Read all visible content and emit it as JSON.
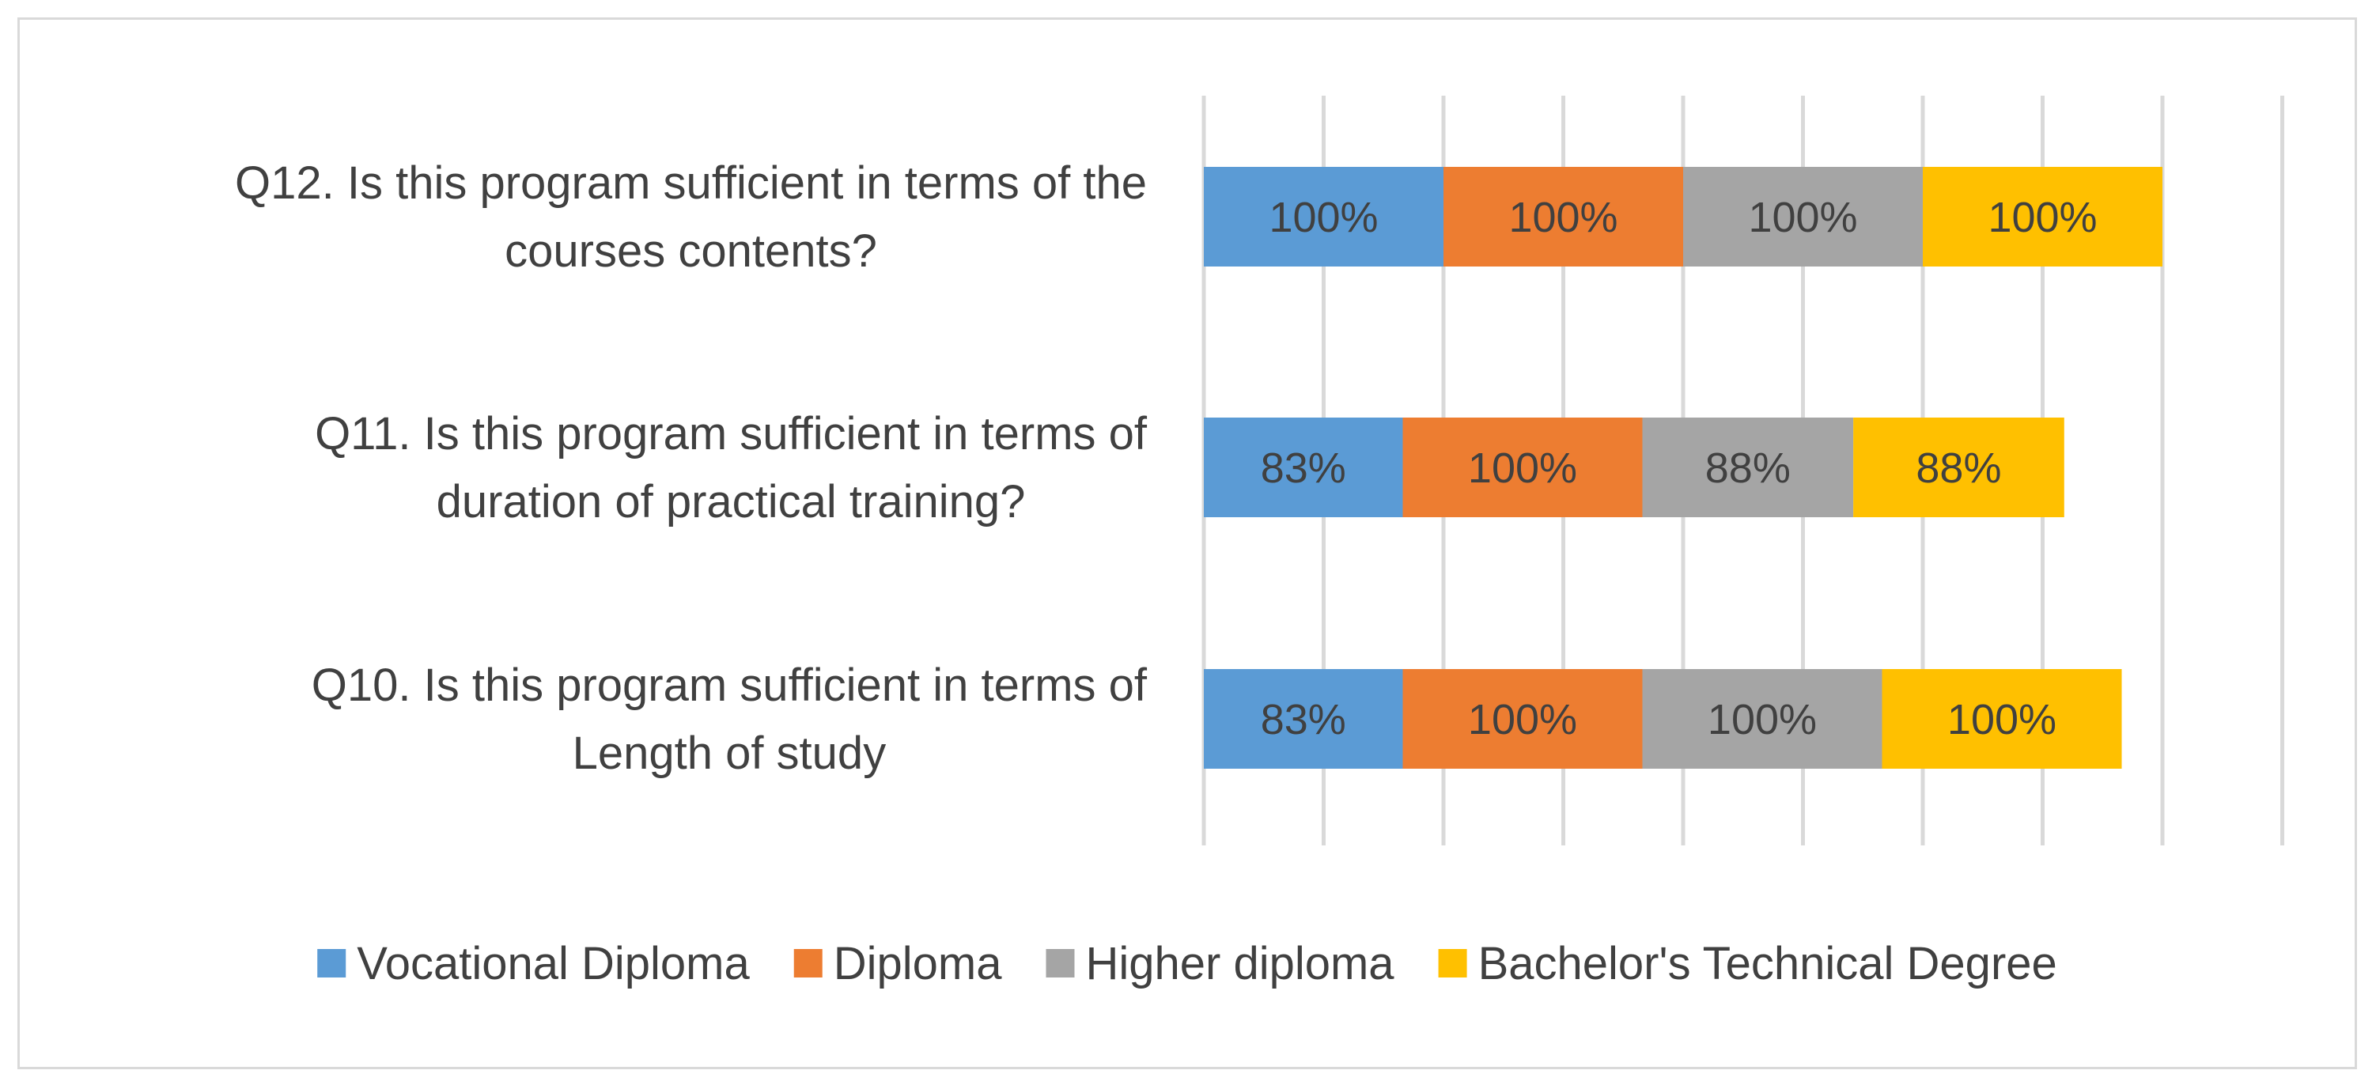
{
  "chart_data": {
    "type": "bar",
    "orientation": "horizontal",
    "stacked": true,
    "categories": [
      [
        "Q12. Is this program sufficient in terms of the",
        "courses contents?"
      ],
      [
        "Q11. Is this program sufficient in terms of",
        "duration of practical training?"
      ],
      [
        "Q10. Is this program sufficient in terms of",
        "Length of study"
      ]
    ],
    "series": [
      {
        "name": "Vocational Diploma",
        "color": "#5b9bd5",
        "values": [
          1.0,
          0.83,
          0.83
        ],
        "labels": [
          "100%",
          "83%",
          "83%"
        ]
      },
      {
        "name": "Diploma",
        "color": "#ed7d31",
        "values": [
          1.0,
          1.0,
          1.0
        ],
        "labels": [
          "100%",
          "100%",
          "100%"
        ]
      },
      {
        "name": "Higher diploma",
        "color": "#a5a5a5",
        "values": [
          1.0,
          0.88,
          1.0
        ],
        "labels": [
          "100%",
          "88%",
          "100%"
        ]
      },
      {
        "name": "Bachelor's Technical Degree",
        "color": "#ffc000",
        "values": [
          1.0,
          0.88,
          1.0
        ],
        "labels": [
          "100%",
          "88%",
          "100%"
        ]
      }
    ],
    "xlim": [
      0,
      4.5
    ],
    "gridlines": true,
    "gridline_step": 0.5,
    "legend_position": "bottom",
    "title": "",
    "xlabel": "",
    "ylabel": ""
  }
}
